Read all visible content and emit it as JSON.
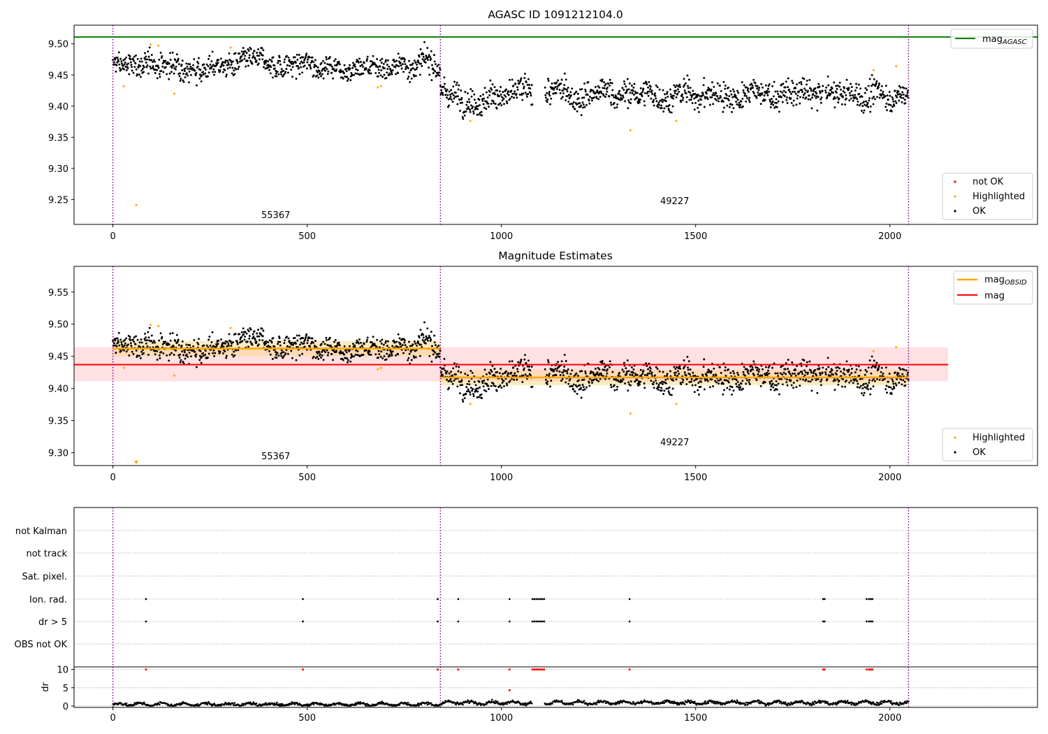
{
  "chart_data": [
    {
      "type": "scatter",
      "title": "AGASC ID 1091212104.0",
      "xlim": [
        -100,
        2380
      ],
      "ylim": [
        9.21,
        9.53
      ],
      "xticks": [
        "0",
        "500",
        "1000",
        "1500",
        "2000"
      ],
      "yticks": [
        "9.25",
        "9.30",
        "9.35",
        "9.40",
        "9.45",
        "9.50"
      ],
      "agasc_mag": 9.511,
      "obsid_boundaries": [
        0,
        843,
        2048
      ],
      "obsid_labels": [
        "55367",
        "49227"
      ],
      "legend_upper": {
        "position": "upper right",
        "entries": [
          "mag",
          "AGASC"
        ]
      },
      "legend_lower": {
        "position": "lower right",
        "entries": [
          "not OK",
          "Highlighted",
          "OK"
        ]
      },
      "colors": {
        "ok": "#000000",
        "highlighted": "#ffa500",
        "not_ok": "#ff0000",
        "agasc": "#008000",
        "boundary": "#800080"
      },
      "series_ok": [
        {
          "x_range": [
            0,
            843
          ],
          "mean": 9.466,
          "spread": 0.012
        },
        {
          "x_range": [
            843,
            2048
          ],
          "mean": 9.418,
          "spread": 0.014
        }
      ],
      "highlighted_points": [
        [
          28,
          9.432
        ],
        [
          60,
          9.241
        ],
        [
          97,
          9.499
        ],
        [
          117,
          9.497
        ],
        [
          158,
          9.42
        ],
        [
          303,
          9.494
        ],
        [
          682,
          9.43
        ],
        [
          690,
          9.432
        ],
        [
          920,
          9.376
        ],
        [
          1332,
          9.361
        ],
        [
          1450,
          9.376
        ],
        [
          1958,
          9.458
        ],
        [
          2016,
          9.464
        ]
      ],
      "not_ok_points": []
    },
    {
      "type": "scatter",
      "title": "Magnitude Estimates",
      "xlim": [
        -100,
        2380
      ],
      "ylim": [
        9.28,
        9.59
      ],
      "xticks": [
        "0",
        "500",
        "1000",
        "1500",
        "2000"
      ],
      "yticks": [
        "9.30",
        "9.35",
        "9.40",
        "9.45",
        "9.50",
        "9.55"
      ],
      "obsid_labels": [
        "55367",
        "49227"
      ],
      "mag": {
        "value": 9.437,
        "band": [
          9.411,
          9.464
        ],
        "x_range": [
          -100,
          2150
        ]
      },
      "mag_obsid": [
        {
          "x_range": [
            0,
            843
          ],
          "value": 9.462,
          "band": [
            9.45,
            9.474
          ]
        },
        {
          "x_range": [
            843,
            2048
          ],
          "value": 9.417,
          "band": [
            9.405,
            9.429
          ]
        }
      ],
      "legend_upper": {
        "position": "upper right",
        "entries": [
          "mag",
          "OBSID",
          "mag"
        ]
      },
      "legend_lower": {
        "position": "lower right",
        "entries": [
          "Highlighted",
          "OK"
        ]
      },
      "colors": {
        "mag": "#ff0000",
        "mag_obsid": "#ffa500",
        "band": "#ffe0e3"
      }
    },
    {
      "type": "scatter",
      "title": "",
      "xlim": [
        -100,
        2380
      ],
      "xticks": [
        "0",
        "500",
        "1000",
        "1500",
        "2000"
      ],
      "flag_rows": [
        "not Kalman",
        "not track",
        "Sat. pixel.",
        "Ion. rad.",
        "dr > 5",
        "OBS not OK"
      ],
      "flag_x": {
        "Ion. rad.": [
          85,
          489,
          836,
          889,
          1021,
          1080,
          1085,
          1090,
          1095,
          1100,
          1105,
          1110,
          1330,
          1828,
          1832,
          1940,
          1946,
          1951,
          1955
        ],
        "dr > 5": [
          85,
          489,
          836,
          889,
          1021,
          1080,
          1085,
          1090,
          1095,
          1100,
          1105,
          1110,
          1330,
          1828,
          1832,
          1940,
          1946,
          1951,
          1955
        ]
      },
      "dr": {
        "ylabel": "dr",
        "yticks": [
          "0",
          "5",
          "10"
        ],
        "ylim": [
          -0.4,
          10.7
        ],
        "x_range": [
          0,
          2048
        ],
        "typical": [
          0.5,
          1.3
        ],
        "outliers": [
          [
            85,
            10
          ],
          [
            489,
            10
          ],
          [
            836,
            10
          ],
          [
            889,
            10
          ],
          [
            1021,
            10
          ],
          [
            1021,
            4.3
          ],
          [
            1080,
            10
          ],
          [
            1085,
            10
          ],
          [
            1090,
            10
          ],
          [
            1095,
            10
          ],
          [
            1100,
            10
          ],
          [
            1105,
            10
          ],
          [
            1110,
            10
          ],
          [
            1330,
            10
          ],
          [
            1828,
            10
          ],
          [
            1832,
            10
          ],
          [
            1940,
            10
          ],
          [
            1946,
            10
          ],
          [
            1951,
            10
          ],
          [
            1955,
            10
          ]
        ]
      }
    }
  ]
}
